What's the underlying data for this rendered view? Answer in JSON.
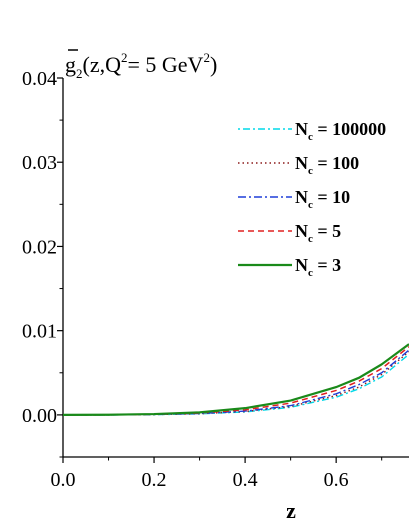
{
  "chart_data": {
    "type": "line",
    "title": {
      "base": "g",
      "sub": "2",
      "args_open": "(z,Q",
      "q_sup": "2",
      "equals": "= 5 GeV",
      "unit_sup": "2",
      "close": ")"
    },
    "xlabel": "z",
    "ylabel": "",
    "xlim": [
      0.0,
      0.76
    ],
    "ylim": [
      -0.005,
      0.04
    ],
    "x_ticks": [
      {
        "value": 0.0,
        "label": "0.0"
      },
      {
        "value": 0.2,
        "label": "0.2"
      },
      {
        "value": 0.4,
        "label": "0.4"
      },
      {
        "value": 0.6,
        "label": "0.6"
      }
    ],
    "y_ticks": [
      {
        "value": 0.0,
        "label": "0.00"
      },
      {
        "value": 0.01,
        "label": "0.01"
      },
      {
        "value": 0.02,
        "label": "0.02"
      },
      {
        "value": 0.03,
        "label": "0.03"
      },
      {
        "value": 0.04,
        "label": "0.04"
      }
    ],
    "legend_placement": "top-right",
    "grid": false,
    "x": [
      0.0,
      0.1,
      0.2,
      0.3,
      0.4,
      0.5,
      0.6,
      0.65,
      0.7,
      0.76
    ],
    "series": [
      {
        "name_prefix": "N",
        "name_sub": "c",
        "name_suffix": " = 100000",
        "color": "#00d8e8",
        "dash": "2 3 7 3",
        "width": 1.4,
        "values": [
          0.0,
          0.0,
          3e-05,
          0.00012,
          0.00035,
          0.0009,
          0.0021,
          0.0031,
          0.0045,
          0.0072
        ]
      },
      {
        "name_prefix": "N",
        "name_sub": "c",
        "name_suffix": " = 100",
        "color": "#8b1a1a",
        "dash": "1.5 3",
        "width": 1.4,
        "values": [
          0.0,
          0.0,
          4e-05,
          0.00014,
          0.0004,
          0.001,
          0.0023,
          0.0033,
          0.0048,
          0.0075
        ]
      },
      {
        "name_prefix": "N",
        "name_sub": "c",
        "name_suffix": " = 10",
        "color": "#1e3fd8",
        "dash": "8 3 2 3",
        "width": 1.4,
        "values": [
          0.0,
          0.0,
          5e-05,
          0.00016,
          0.00045,
          0.0011,
          0.0025,
          0.0036,
          0.005,
          0.0077
        ]
      },
      {
        "name_prefix": "N",
        "name_sub": "c",
        "name_suffix": " = 5",
        "color": "#e02020",
        "dash": "6 4",
        "width": 1.5,
        "values": [
          0.0,
          1e-05,
          7e-05,
          0.00022,
          0.0006,
          0.0014,
          0.0029,
          0.004,
          0.0055,
          0.0081
        ]
      },
      {
        "name_prefix": "N",
        "name_sub": "c",
        "name_suffix": " = 3",
        "color": "#1a8a1a",
        "dash": "",
        "width": 2.2,
        "values": [
          0.0,
          2e-05,
          0.0001,
          0.0003,
          0.0008,
          0.0017,
          0.0033,
          0.0044,
          0.006,
          0.0084
        ]
      }
    ]
  }
}
